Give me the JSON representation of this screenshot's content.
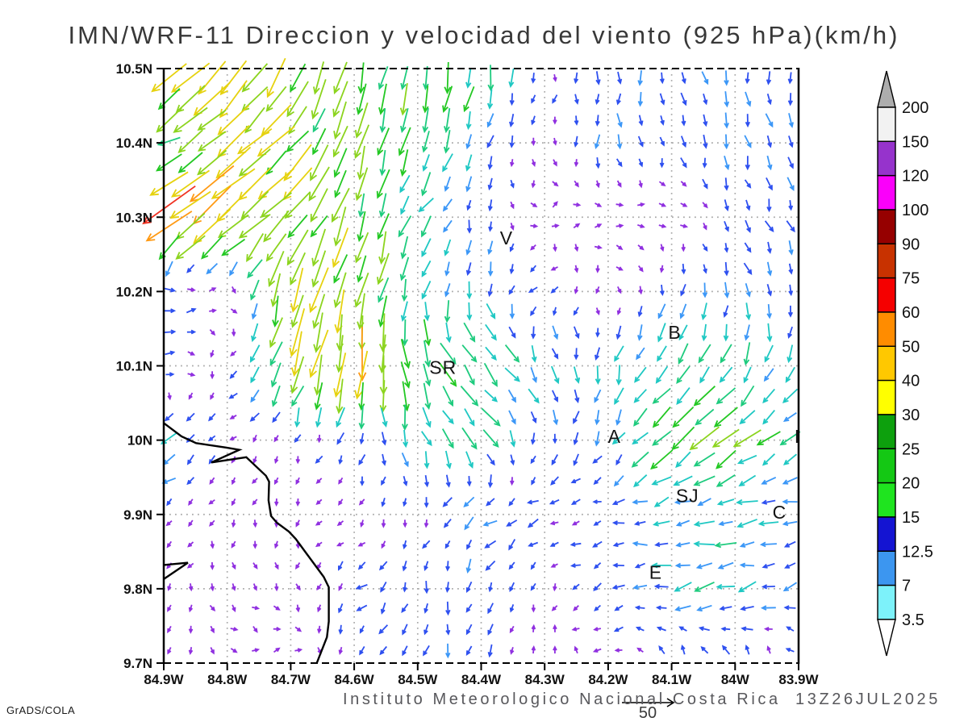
{
  "header": {
    "title": "IMN/WRF-11 Direccion y velocidad del viento (925 hPa)(km/h)"
  },
  "footer": {
    "annotation": "Instituto Meteorologico Nacional Costa Rica  13Z26JUL2025",
    "credit": "GrADS/COLA"
  },
  "reference_vector": {
    "label": "50"
  },
  "chart_data": {
    "type": "vector_field",
    "title": "IMN/WRF-11 Direccion y velocidad del viento (925 hPa)(km/h)",
    "model": "IMN/WRF-11",
    "level": "925 hPa",
    "units": "km/h",
    "valid_time": "13Z26JUL2025",
    "grid": "dotted",
    "x_axis": {
      "range": [
        84.9,
        83.9
      ],
      "tick_labels": [
        "84.9W",
        "84.8W",
        "84.7W",
        "84.6W",
        "84.5W",
        "84.4W",
        "84.3W",
        "84.2W",
        "84.1W",
        "84W",
        "83.9W"
      ],
      "tick_values": [
        84.9,
        84.8,
        84.7,
        84.6,
        84.5,
        84.4,
        84.3,
        84.2,
        84.1,
        84.0,
        83.9
      ]
    },
    "y_axis": {
      "range": [
        10.5,
        9.7
      ],
      "tick_labels": [
        "10.5N",
        "10.4N",
        "10.3N",
        "10.2N",
        "10.1N",
        "10N",
        "9.9N",
        "9.8N",
        "9.7N"
      ],
      "tick_values": [
        10.5,
        10.4,
        10.3,
        10.2,
        10.1,
        10.0,
        9.9,
        9.8,
        9.7
      ]
    },
    "colorbar": {
      "labels_top_to_bottom": [
        "200",
        "150",
        "120",
        "100",
        "90",
        "75",
        "60",
        "50",
        "40",
        "30",
        "25",
        "20",
        "15",
        "12.5",
        "7",
        "3.5"
      ],
      "colors_top_to_bottom": [
        "#f2f2f2",
        "#9633cc",
        "#fa00fa",
        "#960000",
        "#c83200",
        "#f50000",
        "#ff8c00",
        "#ffc800",
        "#ffff00",
        "#0da00d",
        "#14c814",
        "#1fe41f",
        "#1414d2",
        "#3c96f0",
        "#7df2fa"
      ],
      "above_color": "#adadad",
      "below_color": "#ffffff",
      "outline_color": "#000000"
    },
    "city_markers": [
      {
        "label": "V",
        "lon": 84.36,
        "lat": 10.272
      },
      {
        "label": "B",
        "lon": 84.095,
        "lat": 10.145
      },
      {
        "label": "SR",
        "lon": 84.46,
        "lat": 10.098
      },
      {
        "label": "A",
        "lon": 84.19,
        "lat": 10.005
      },
      {
        "label": "SJ",
        "lon": 84.075,
        "lat": 9.925
      },
      {
        "label": "C",
        "lon": 83.93,
        "lat": 9.903
      },
      {
        "label": "E",
        "lon": 84.125,
        "lat": 9.822
      },
      {
        "label": "I",
        "lon": 83.902,
        "lat": 10.005
      }
    ],
    "coastline": [
      [
        84.9,
        10.023
      ],
      [
        84.872,
        10.005
      ],
      [
        84.849,
        9.996
      ],
      [
        84.802,
        9.99
      ],
      [
        84.781,
        9.987
      ],
      [
        84.825,
        9.97
      ],
      [
        84.77,
        9.977
      ],
      [
        84.739,
        9.952
      ],
      [
        84.734,
        9.944
      ],
      [
        84.735,
        9.919
      ],
      [
        84.731,
        9.898
      ],
      [
        84.722,
        9.889
      ],
      [
        84.703,
        9.877
      ],
      [
        84.692,
        9.867
      ],
      [
        84.674,
        9.846
      ],
      [
        84.648,
        9.816
      ],
      [
        84.64,
        9.802
      ],
      [
        84.64,
        9.756
      ],
      [
        84.643,
        9.735
      ],
      [
        84.659,
        9.7
      ]
    ],
    "coast_inlet": [
      [
        84.9,
        9.832
      ],
      [
        84.862,
        9.835
      ],
      [
        84.9,
        9.813
      ]
    ],
    "wind_grid": {
      "comment": "coarse control grid of wind components in km/h; u east+, v north+; rows = lats top to bottom",
      "lons": [
        84.9,
        84.8,
        84.7,
        84.6,
        84.5,
        84.4,
        84.3,
        84.2,
        84.1,
        84.0,
        83.9
      ],
      "lats": [
        10.5,
        10.4,
        10.3,
        10.2,
        10.1,
        10.0,
        9.9,
        9.8,
        9.7
      ],
      "u": [
        [
          -35,
          -25,
          -12,
          -8,
          -5,
          -3,
          -2,
          0,
          1,
          2,
          2
        ],
        [
          -18,
          -30,
          -26,
          -8,
          -5,
          -2,
          -2,
          1,
          2,
          3,
          3
        ],
        [
          -45,
          -35,
          -24,
          -8,
          -12,
          0,
          4,
          3,
          2,
          4,
          3
        ],
        [
          12,
          5,
          -10,
          -8,
          -4,
          3,
          -8,
          2,
          -2,
          3,
          2
        ],
        [
          11,
          -4,
          -12,
          -6,
          6,
          14,
          8,
          -2,
          -14,
          -10,
          -4
        ],
        [
          -14,
          -5,
          -2,
          -3,
          6,
          14,
          -2,
          -4,
          -22,
          -20,
          -14
        ],
        [
          -4,
          -2,
          -2,
          -3,
          -2,
          -12,
          -9,
          -8,
          -14,
          -16,
          -13
        ],
        [
          -3,
          3,
          2,
          -8,
          -2,
          -3,
          -2,
          -8,
          -15,
          -16,
          -10
        ],
        [
          -3,
          4,
          4,
          -2,
          -2,
          -3,
          2,
          -7,
          -3,
          -2,
          -4
        ]
      ],
      "v": [
        [
          -30,
          -28,
          -30,
          -28,
          -28,
          -24,
          -6,
          -12,
          -11,
          -12,
          -12
        ],
        [
          -8,
          -28,
          -26,
          -26,
          -22,
          -12,
          -5,
          -12,
          -10,
          -11,
          -10
        ],
        [
          -35,
          -30,
          -22,
          -28,
          -14,
          -10,
          3,
          2,
          1,
          -10,
          -11
        ],
        [
          -1,
          2,
          -38,
          -35,
          -18,
          -14,
          -6,
          -4,
          -10,
          -12,
          -8
        ],
        [
          0,
          -4,
          -32,
          -45,
          -22,
          -16,
          -14,
          -14,
          -16,
          -18,
          -14
        ],
        [
          -10,
          -4,
          -5,
          -10,
          -16,
          -14,
          -10,
          -10,
          -20,
          -16,
          -10
        ],
        [
          -4,
          -4,
          -4,
          -4,
          -6,
          -8,
          -2,
          -1,
          -2,
          -2,
          -2
        ],
        [
          -4,
          -3,
          -4,
          -6,
          -9,
          -10,
          -5,
          -3,
          -3,
          -4,
          -3
        ],
        [
          -3,
          -2,
          2,
          -8,
          -9,
          -12,
          10,
          -2,
          9,
          10,
          6
        ]
      ],
      "speed_colors": [
        {
          "max": 7,
          "color": "#9030e0"
        },
        {
          "max": 12.5,
          "color": "#2e50f0"
        },
        {
          "max": 15,
          "color": "#3b97f7"
        },
        {
          "max": 20,
          "color": "#1fc8c3"
        },
        {
          "max": 25,
          "color": "#1ecb7e"
        },
        {
          "max": 30,
          "color": "#23c823"
        },
        {
          "max": 40,
          "color": "#8cd41e"
        },
        {
          "max": 50,
          "color": "#e6d20f"
        },
        {
          "max": 60,
          "color": "#ff9a14"
        },
        {
          "max": 75,
          "color": "#f03223"
        },
        {
          "max": 9999,
          "color": "#cc1111"
        }
      ],
      "reference_speed": 50,
      "seed": 42
    }
  }
}
